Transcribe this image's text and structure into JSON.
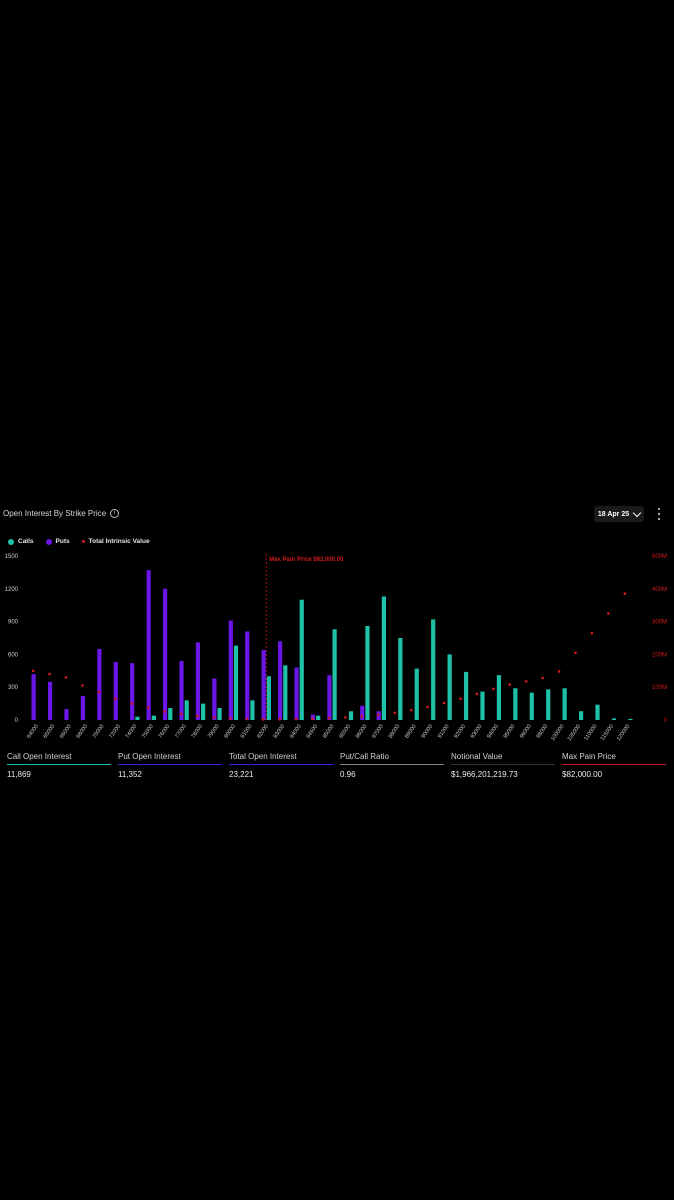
{
  "header": {
    "title": "Open Interest By Strike Price",
    "date": "18 Apr 25"
  },
  "icons": {
    "info": "info-icon",
    "dropdown": "chevron-down-icon",
    "menu": "kebab-menu-icon"
  },
  "colors": {
    "calls": "#1fc2a8",
    "puts": "#6a16e6",
    "intrinsic": "#d41a1a",
    "max_pain": "#d41a1a"
  },
  "legend": [
    {
      "label": "Calls",
      "color": "#1fc2a8"
    },
    {
      "label": "Puts",
      "color": "#6a16e6"
    },
    {
      "label": "Total Intrinsic Value",
      "color": "#d41a1a"
    }
  ],
  "chart_data": {
    "type": "bar",
    "categories": [
      "64000",
      "65000",
      "66000",
      "68000",
      "70000",
      "72000",
      "74000",
      "75000",
      "76000",
      "77000",
      "78000",
      "79000",
      "80000",
      "81000",
      "82000",
      "83000",
      "84000",
      "84500",
      "85000",
      "85500",
      "86000",
      "87000",
      "88000",
      "89000",
      "90000",
      "91000",
      "92000",
      "93000",
      "94000",
      "95000",
      "96000",
      "98000",
      "100000",
      "105000",
      "110000",
      "115000",
      "120000"
    ],
    "series": [
      {
        "name": "Calls",
        "values": [
          0,
          0,
          0,
          0,
          0,
          0,
          30,
          40,
          110,
          180,
          150,
          110,
          680,
          180,
          400,
          500,
          1100,
          40,
          830,
          80,
          860,
          1130,
          750,
          470,
          920,
          600,
          440,
          260,
          410,
          290,
          250,
          280,
          290,
          80,
          140,
          15,
          10
        ]
      },
      {
        "name": "Puts",
        "values": [
          420,
          350,
          100,
          220,
          650,
          530,
          520,
          1370,
          1200,
          540,
          710,
          380,
          910,
          810,
          640,
          720,
          480,
          50,
          410,
          0,
          130,
          80,
          0,
          0,
          0,
          0,
          0,
          0,
          0,
          0,
          0,
          0,
          0,
          0,
          0,
          0,
          0
        ]
      },
      {
        "name": "Total Intrinsic Value",
        "axis": "right",
        "values": [
          150,
          140,
          130,
          105,
          85,
          65,
          50,
          38,
          26,
          18,
          12,
          8,
          5,
          3,
          2,
          2,
          3,
          4,
          6,
          8,
          11,
          16,
          22,
          30,
          40,
          52,
          65,
          80,
          95,
          108,
          118,
          128,
          148,
          205,
          265,
          325,
          385
        ]
      }
    ],
    "ylim": [
      0,
      1500
    ],
    "yticks": [
      "0",
      "300",
      "600",
      "900",
      "1200",
      "1500"
    ],
    "y2lim": [
      0,
      500
    ],
    "y2ticks": [
      "0",
      "100M",
      "200M",
      "300M",
      "400M",
      "500M"
    ],
    "max_pain": {
      "label": "Max Pain Price $82,000.00",
      "category": "82000"
    },
    "grid": false,
    "legend_position": "top-left"
  },
  "stats": [
    {
      "label": "Call Open Interest",
      "value": "11,869",
      "accent": "#1fc2a8"
    },
    {
      "label": "Put Open Interest",
      "value": "11,352",
      "accent": "#3a1fe6"
    },
    {
      "label": "Total Open Interest",
      "value": "23,221",
      "accent": "#3a1fe6"
    },
    {
      "label": "Put/Call Ratio",
      "value": "0.96",
      "accent": "#888888"
    },
    {
      "label": "Notional Value",
      "value": "$1,966,201,219.73",
      "accent": "#333333"
    },
    {
      "label": "Max Pain Price",
      "value": "$82,000.00",
      "accent": "#d41a1a"
    }
  ]
}
